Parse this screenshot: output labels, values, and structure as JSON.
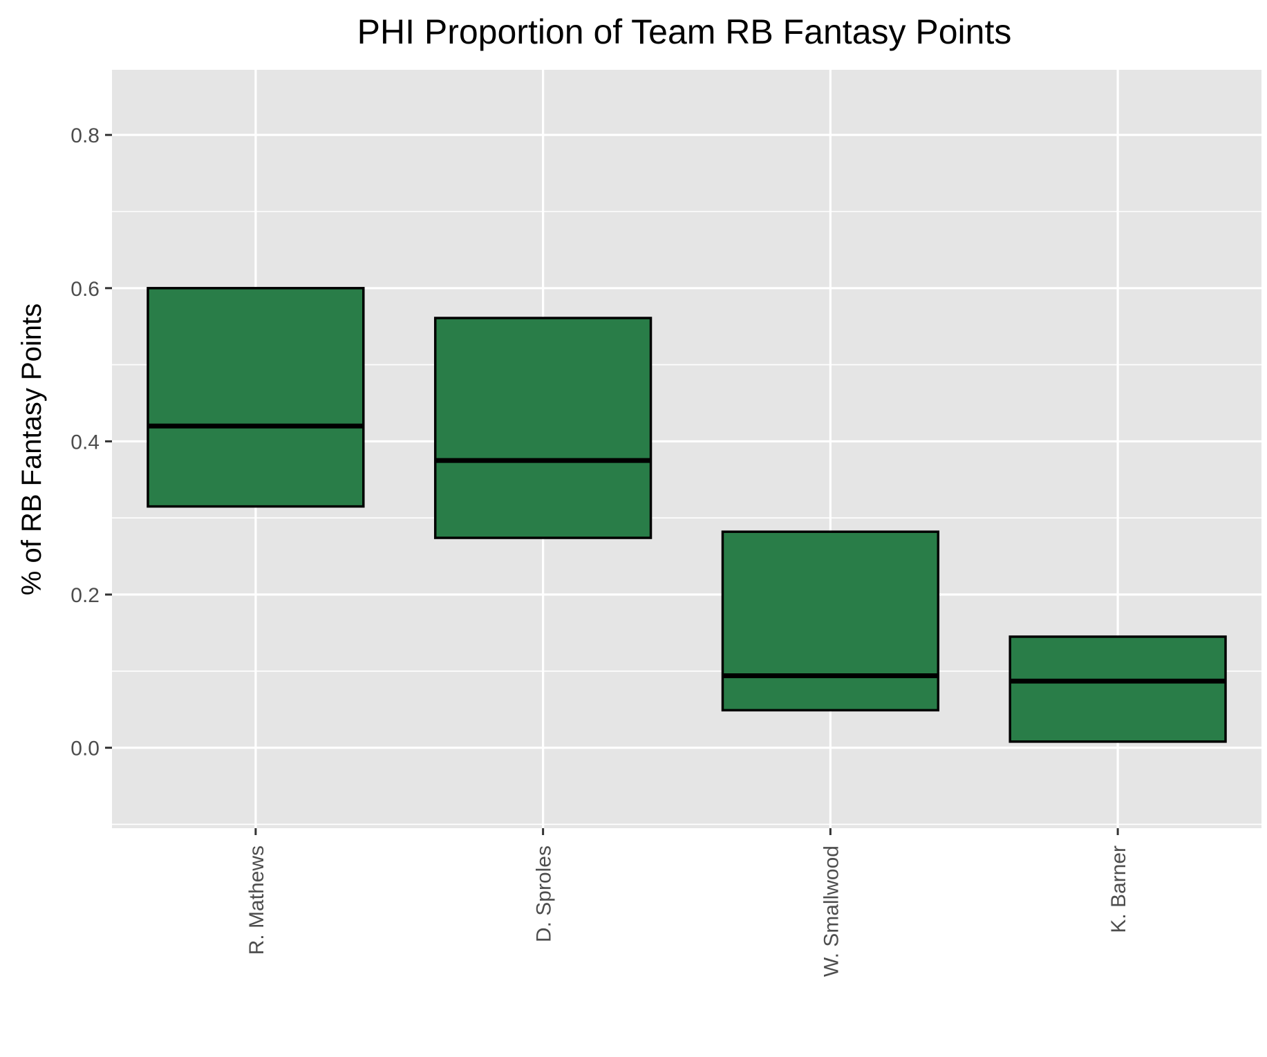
{
  "chart_data": {
    "type": "boxplot",
    "title": "PHI Proportion of Team RB Fantasy Points",
    "xlabel": "",
    "ylabel": "% of RB Fantasy Points",
    "categories": [
      "R. Mathews",
      "D. Sproles",
      "W. Smallwood",
      "K. Barner"
    ],
    "boxes": [
      {
        "name": "R. Mathews",
        "q1": 0.315,
        "median": 0.42,
        "q3": 0.6
      },
      {
        "name": "D. Sproles",
        "q1": 0.274,
        "median": 0.375,
        "q3": 0.561
      },
      {
        "name": "W. Smallwood",
        "q1": 0.049,
        "median": 0.094,
        "q3": 0.282
      },
      {
        "name": "K. Barner",
        "q1": 0.008,
        "median": 0.087,
        "q3": 0.145
      }
    ],
    "yticks": [
      0.0,
      0.2,
      0.4,
      0.6,
      0.8
    ],
    "ytick_labels": [
      "0.0",
      "0.2",
      "0.4",
      "0.6",
      "0.8"
    ],
    "ylim": [
      -0.105,
      0.885
    ],
    "grid": true,
    "legend": "none",
    "colors": {
      "box_fill": "#297d48",
      "box_outline": "#000000",
      "panel_background": "#e5e5e5",
      "grid": "#ffffff"
    }
  }
}
